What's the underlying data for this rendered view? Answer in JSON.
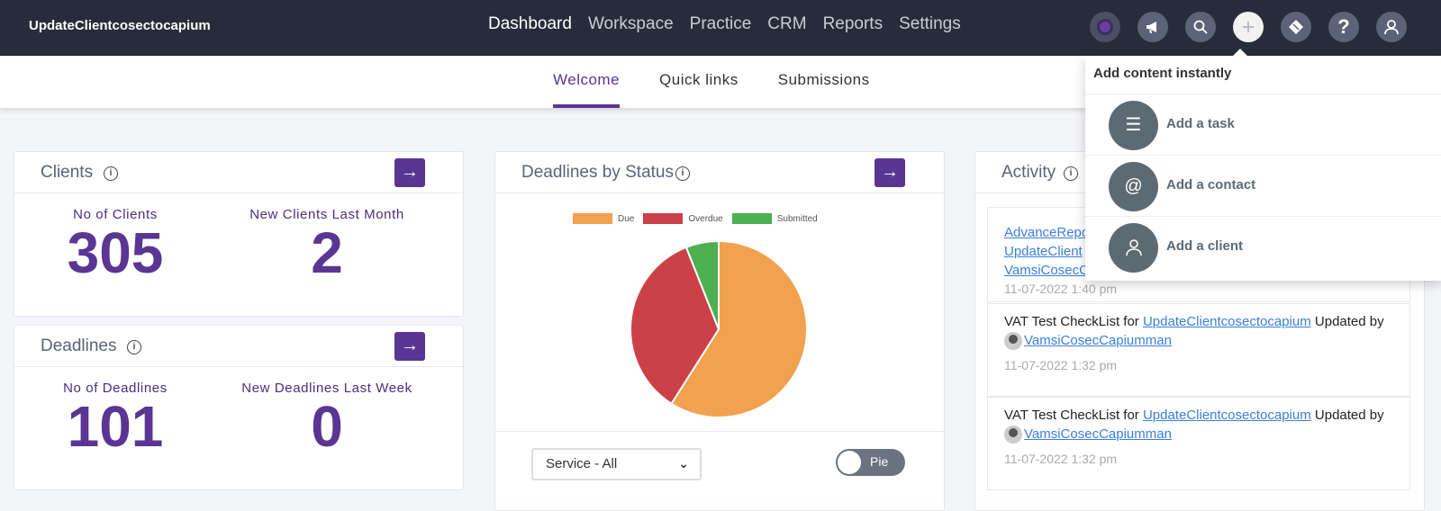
{
  "app": {
    "brand": "UpdateClientcosectocapium"
  },
  "nav": {
    "items": [
      "Dashboard",
      "Workspace",
      "Practice",
      "CRM",
      "Reports",
      "Settings"
    ]
  },
  "subnav": {
    "tabs": [
      "Welcome",
      "Quick links",
      "Submissions"
    ]
  },
  "clients": {
    "title": "Clients",
    "no_label": "No of Clients",
    "no_value": "305",
    "new_label": "New Clients Last Month",
    "new_value": "2"
  },
  "deadlines": {
    "title": "Deadlines",
    "no_label": "No of Deadlines",
    "no_value": "101",
    "new_label": "New Deadlines Last Week",
    "new_value": "0"
  },
  "deadlines_status": {
    "title": "Deadlines by Status",
    "filter_value": "Service - All",
    "toggle_label": "Pie"
  },
  "chart_data": {
    "type": "pie",
    "categories": [
      "Due",
      "Overdue",
      "Submitted"
    ],
    "values": [
      59,
      35,
      6
    ],
    "colors": [
      "#f2a14f",
      "#cc4148",
      "#4caf50"
    ],
    "legend": "top"
  },
  "activity": {
    "title": "Activity",
    "partial_links": [
      "AdvanceRepo",
      "UpdateClient",
      "VamsiCosecC"
    ],
    "partial_time": "11-07-2022 1:40 pm",
    "items": [
      {
        "prefix": "VAT Test CheckList for ",
        "client": "UpdateClientcosectocapium",
        "mid": " Updated by",
        "user": "VamsiCosecCapiumman",
        "time": "11-07-2022 1:32 pm"
      },
      {
        "prefix": "VAT Test CheckList for ",
        "client": "UpdateClientcosectocapium",
        "mid": " Updated by",
        "user": "VamsiCosecCapiumman",
        "time": "11-07-2022 1:32 pm"
      }
    ]
  },
  "add_menu": {
    "title": "Add content instantly",
    "items": [
      {
        "label": "Add a task",
        "icon": "checklist-icon"
      },
      {
        "label": "Add a contact",
        "icon": "at-icon"
      },
      {
        "label": "Add a client",
        "icon": "person-icon"
      }
    ]
  }
}
